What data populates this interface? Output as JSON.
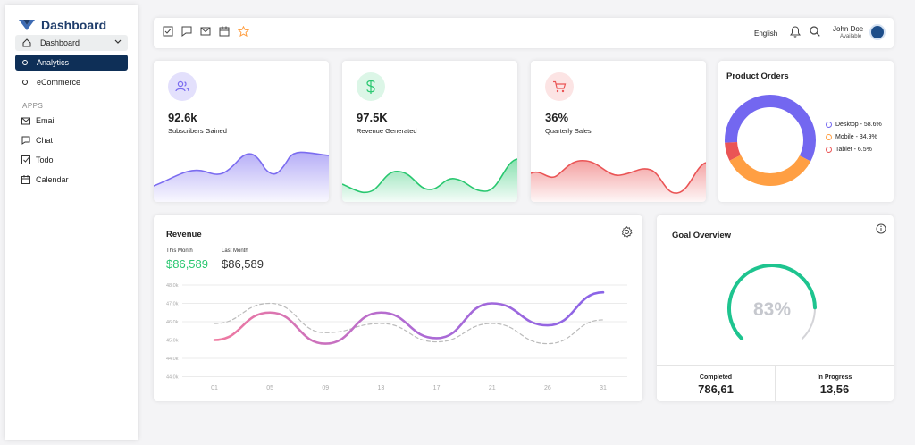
{
  "brand": {
    "title": "Dashboard",
    "color": "#1f3d6b"
  },
  "sidebar": {
    "dashboard_label": "Dashboard",
    "sub_items": [
      {
        "label": "Analytics",
        "active": true
      },
      {
        "label": "eCommerce",
        "active": false
      }
    ],
    "apps_heading": "APPS",
    "apps": [
      {
        "label": "Email",
        "icon": "mail-icon"
      },
      {
        "label": "Chat",
        "icon": "chat-icon"
      },
      {
        "label": "Todo",
        "icon": "checkbox-icon"
      },
      {
        "label": "Calendar",
        "icon": "calendar-icon"
      }
    ],
    "active_color": "#0e2f57"
  },
  "topbar": {
    "shortcut_icons": [
      "checkbox-icon",
      "chat-icon",
      "mail-icon",
      "calendar-icon",
      "star-icon"
    ],
    "language": "English",
    "user_name": "John Doe",
    "user_status": "Available"
  },
  "stats": [
    {
      "value": "92.6k",
      "label": "Subscribers Gained",
      "color": "#7b6cf0",
      "icon": "users-icon"
    },
    {
      "value": "97.5K",
      "label": "Revenue Generated",
      "color": "#28c76f",
      "icon": "dollar-icon"
    },
    {
      "value": "36%",
      "label": "Quarterly Sales",
      "color": "#ea5455",
      "icon": "cart-icon"
    }
  ],
  "product_orders": {
    "title": "Product Orders",
    "chart_data": {
      "type": "pie",
      "categories": [
        "Desktop",
        "Mobile",
        "Tablet"
      ],
      "values": [
        58.6,
        34.9,
        6.5
      ],
      "colors": [
        "#7367f0",
        "#ff9f43",
        "#ea5455"
      ],
      "legend": [
        "Desktop - 58.6%",
        "Mobile - 34.9%",
        "Tablet - 6.5%"
      ],
      "legend_position": "right"
    }
  },
  "revenue": {
    "title": "Revenue",
    "this_month_label": "This Month",
    "this_month_value": "$86,589",
    "last_month_label": "Last Month",
    "last_month_value": "$86,589",
    "chart_data": {
      "type": "line",
      "x": [
        "01",
        "05",
        "09",
        "13",
        "17",
        "21",
        "26",
        "31"
      ],
      "y_ticks": [
        "48.0k",
        "47.0k",
        "46.0k",
        "45.0k",
        "44.0k"
      ],
      "series": [
        {
          "values": [
            45.0,
            46.5,
            44.8,
            46.5,
            45.1,
            47.0,
            45.8,
            47.6
          ],
          "color": "#9b59d0",
          "style": "solid"
        },
        {
          "values": [
            45.9,
            47.0,
            45.4,
            45.9,
            44.9,
            45.9,
            44.8,
            46.1
          ],
          "color": "#bbbbbb",
          "style": "dashed"
        }
      ],
      "grid": true
    }
  },
  "goal": {
    "title": "Goal Overview",
    "percent": "83%",
    "progress": 0.83,
    "completed_label": "Completed",
    "completed_value": "786,61",
    "in_progress_label": "In Progress",
    "in_progress_value": "13,56"
  }
}
